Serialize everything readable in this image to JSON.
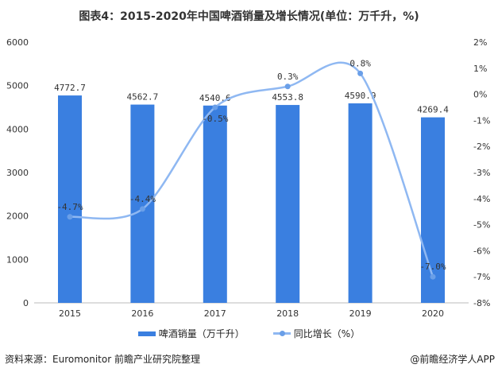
{
  "chart_data": {
    "type": "bar+line",
    "title": "图表4：2015-2020年中国啤酒销量及增长情况(单位：万千升，%)",
    "categories": [
      "2015",
      "2016",
      "2017",
      "2018",
      "2019",
      "2020"
    ],
    "series": [
      {
        "name": "啤酒销量（万千升）",
        "type": "bar",
        "axis": "left",
        "color": "#3a7fe0",
        "values": [
          4772.7,
          4562.7,
          4540.6,
          4553.8,
          4590.9,
          4269.4
        ],
        "labels": [
          "4772.7",
          "4562.7",
          "4540.6",
          "4553.8",
          "4590.9",
          "4269.4"
        ]
      },
      {
        "name": "同比增长（%）",
        "type": "line",
        "axis": "right",
        "color": "#8fb8f2",
        "values": [
          -4.7,
          -4.4,
          -0.5,
          0.3,
          0.8,
          -7.0
        ],
        "labels": [
          "-4.7%",
          "-4.4%",
          "-0.5%",
          "0.3%",
          "0.8%",
          "-7.0%"
        ]
      }
    ],
    "y_left": {
      "range": [
        0,
        6000
      ],
      "ticks": [
        "0",
        "1000",
        "2000",
        "3000",
        "4000",
        "5000",
        "6000"
      ]
    },
    "y_right": {
      "range": [
        -8,
        2
      ],
      "ticks": [
        "-8%",
        "-7%",
        "-6%",
        "-5%",
        "-4%",
        "-3%",
        "-2%",
        "-1%",
        "0%",
        "1%",
        "2%"
      ]
    },
    "grid": false,
    "legend": "bottom"
  },
  "legend": {
    "bar": "啤酒销量（万千升）",
    "line": "同比增长（%）"
  },
  "footer": {
    "source": "资料来源：Euromonitor 前瞻产业研究院整理",
    "brand": "@前瞻经济学人APP"
  }
}
